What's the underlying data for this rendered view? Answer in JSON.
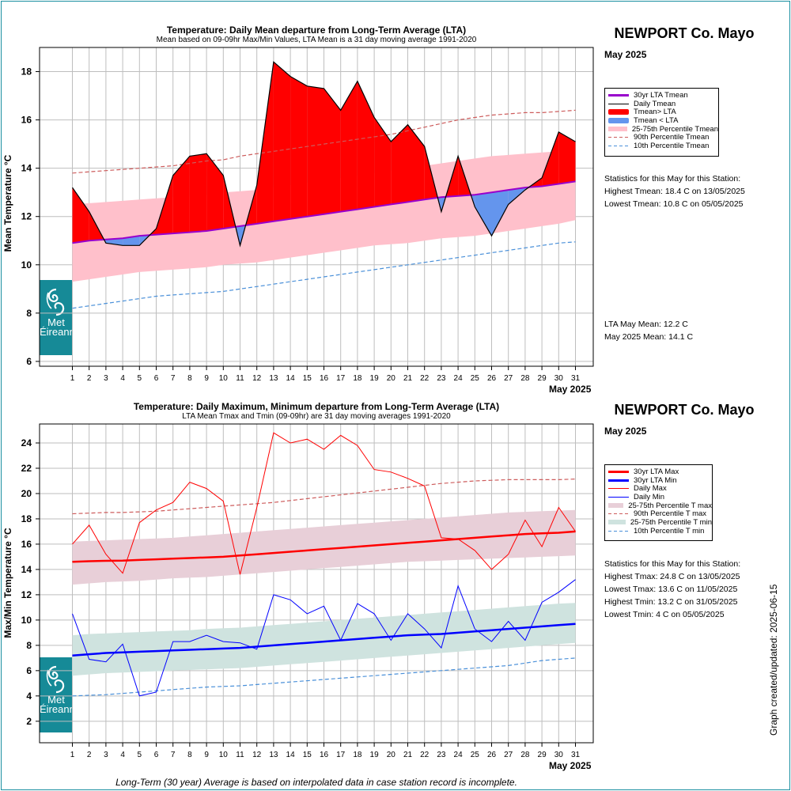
{
  "colors": {
    "frame": "#1b8fa0",
    "grid": "#bebebe",
    "lta": "#9900cc",
    "above": "#ff0000",
    "below": "#6495ed",
    "pband": "#ffc0cb",
    "p90": "#cd5c5c",
    "p10": "#4a90d9",
    "ltamax": "#ff0000",
    "ltamin": "#0000ff",
    "maxband": "#e8cfd8",
    "minband": "#cfe3df",
    "logo": "#168a97"
  },
  "station": "NEWPORT Co. Mayo",
  "period": "May 2025",
  "x_axis_label": "May 2025",
  "updated": "Graph created/updated:  2025-06-15",
  "footnote": "Long-Term (30 year) Average is based on interpolated data in case station record is incomplete.",
  "logo": {
    "line1": "Met",
    "line2": "Éireann",
    "icon": "met-eireann-swirl-icon"
  },
  "top": {
    "title": "Temperature: Daily Mean departure from Long-Term Average (LTA)",
    "subtitle": "Mean based on 09-09hr Max/Min Values, LTA Mean is a 31 day moving average 1991-2020",
    "ylabel": "Mean Temperature °C",
    "legend": [
      {
        "label": "30yr LTA Tmean",
        "kind": "line",
        "color": "#9900cc",
        "width": 3
      },
      {
        "label": "Daily Tmean",
        "kind": "line",
        "color": "#000000",
        "width": 1
      },
      {
        "label": "Tmean> LTA",
        "kind": "box",
        "color": "#ff0000"
      },
      {
        "label": "Tmean < LTA",
        "kind": "box",
        "color": "#6495ed"
      },
      {
        "label": "25-75th Percentile Tmean",
        "kind": "fill",
        "color": "#ffc0cb"
      },
      {
        "label": "90th Percentile Tmean",
        "kind": "dash",
        "color": "#cd5c5c"
      },
      {
        "label": "10th Percentile Tmean",
        "kind": "dash",
        "color": "#4a90d9"
      }
    ],
    "stats_heading": "Statistics for this May for this Station:",
    "stats": [
      "Highest Tmean: 18.4 C on 13/05/2025",
      "Lowest Tmean: 10.8 C on 05/05/2025"
    ],
    "lta_mean": "LTA May Mean: 12.2 C",
    "month_mean": "May 2025 Mean: 14.1 C"
  },
  "bottom": {
    "title": "Temperature: Daily Maximum, Minimum departure from Long-Term Average (LTA)",
    "subtitle": "LTA Mean Tmax and Tmin (09-09hr) are 31 day moving averages 1991-2020",
    "ylabel": "Max/Min Temperature °C",
    "legend": [
      {
        "label": "30yr LTA Max",
        "kind": "line",
        "color": "#ff0000",
        "width": 3
      },
      {
        "label": "30yr LTA Min",
        "kind": "line",
        "color": "#0000ff",
        "width": 3
      },
      {
        "label": "Daily Max",
        "kind": "line",
        "color": "#ff0000",
        "width": 1
      },
      {
        "label": "Daily Min",
        "kind": "line",
        "color": "#0000ff",
        "width": 1
      },
      {
        "label": "25-75th Percentile T max",
        "kind": "fill",
        "color": "#e8cfd8"
      },
      {
        "label": "90th Percentile T max",
        "kind": "dash",
        "color": "#cd5c5c"
      },
      {
        "label": "25-75th Percentile T min",
        "kind": "fill",
        "color": "#cfe3df"
      },
      {
        "label": "10th Percentile T min",
        "kind": "dash",
        "color": "#4a90d9"
      }
    ],
    "stats_heading": "Statistics for this May for this Station:",
    "stats": [
      "Highest Tmax: 24.8 C on 13/05/2025",
      "Lowest Tmax: 13.6 C on 11/05/2025",
      "Highest Tmin: 13.2 C on 31/05/2025",
      "Lowest Tmin: 4 C on 05/05/2025"
    ]
  },
  "chart_data": [
    {
      "type": "line",
      "title": "Temperature: Daily Mean departure from Long-Term Average (LTA)",
      "xlabel": "May 2025",
      "ylabel": "Mean Temperature °C",
      "x": [
        1,
        2,
        3,
        4,
        5,
        6,
        7,
        8,
        9,
        10,
        11,
        12,
        13,
        14,
        15,
        16,
        17,
        18,
        19,
        20,
        21,
        22,
        23,
        24,
        25,
        26,
        27,
        28,
        29,
        30,
        31
      ],
      "ylim": [
        5.8,
        19.0
      ],
      "yticks": [
        6,
        8,
        10,
        12,
        14,
        16,
        18
      ],
      "grid": true,
      "legend_position": "right",
      "series": [
        {
          "name": "Daily Tmean",
          "values": [
            13.2,
            12.2,
            10.9,
            10.8,
            10.8,
            11.5,
            13.7,
            14.5,
            14.6,
            13.7,
            10.8,
            13.3,
            18.4,
            17.8,
            17.4,
            17.3,
            16.4,
            17.6,
            16.1,
            15.1,
            15.8,
            14.9,
            12.2,
            14.5,
            12.4,
            11.2,
            12.5,
            13.1,
            13.6,
            15.5,
            15.1
          ]
        },
        {
          "name": "30yr LTA Tmean",
          "values": [
            10.9,
            11.0,
            11.05,
            11.1,
            11.2,
            11.25,
            11.3,
            11.35,
            11.4,
            11.5,
            11.6,
            11.7,
            11.8,
            11.9,
            12.0,
            12.1,
            12.2,
            12.3,
            12.4,
            12.5,
            12.6,
            12.7,
            12.8,
            12.85,
            12.9,
            13.0,
            13.1,
            13.2,
            13.25,
            13.35,
            13.45
          ]
        },
        {
          "name": "25th Percentile Tmean",
          "values": [
            9.3,
            9.4,
            9.5,
            9.6,
            9.7,
            9.75,
            9.8,
            9.85,
            9.9,
            10.0,
            10.05,
            10.1,
            10.2,
            10.3,
            10.4,
            10.5,
            10.6,
            10.7,
            10.8,
            10.85,
            10.9,
            11.0,
            11.1,
            11.15,
            11.2,
            11.3,
            11.4,
            11.5,
            11.6,
            11.7,
            11.85
          ]
        },
        {
          "name": "75th Percentile Tmean",
          "values": [
            12.5,
            12.55,
            12.6,
            12.65,
            12.7,
            12.75,
            12.8,
            12.85,
            12.9,
            13.0,
            13.05,
            13.1,
            13.2,
            13.3,
            13.4,
            13.5,
            13.6,
            13.7,
            13.8,
            13.9,
            14.0,
            14.1,
            14.2,
            14.3,
            14.4,
            14.5,
            14.55,
            14.6,
            14.65,
            14.7,
            14.8
          ]
        },
        {
          "name": "90th Percentile Tmean",
          "values": [
            13.8,
            13.85,
            13.9,
            13.95,
            14.0,
            14.05,
            14.1,
            14.2,
            14.3,
            14.35,
            14.5,
            14.6,
            14.7,
            14.8,
            14.9,
            15.0,
            15.1,
            15.2,
            15.3,
            15.4,
            15.55,
            15.7,
            15.85,
            16.0,
            16.1,
            16.2,
            16.25,
            16.3,
            16.3,
            16.35,
            16.4
          ]
        },
        {
          "name": "10th Percentile Tmean",
          "values": [
            8.2,
            8.3,
            8.4,
            8.5,
            8.6,
            8.7,
            8.75,
            8.8,
            8.85,
            8.9,
            9.0,
            9.1,
            9.2,
            9.3,
            9.4,
            9.5,
            9.6,
            9.7,
            9.8,
            9.9,
            10.0,
            10.1,
            10.2,
            10.3,
            10.4,
            10.5,
            10.6,
            10.7,
            10.8,
            10.9,
            10.95
          ]
        }
      ]
    },
    {
      "type": "line",
      "title": "Temperature: Daily Maximum, Minimum departure from Long-Term Average (LTA)",
      "xlabel": "May 2025",
      "ylabel": "Max/Min Temperature °C",
      "x": [
        1,
        2,
        3,
        4,
        5,
        6,
        7,
        8,
        9,
        10,
        11,
        12,
        13,
        14,
        15,
        16,
        17,
        18,
        19,
        20,
        21,
        22,
        23,
        24,
        25,
        26,
        27,
        28,
        29,
        30,
        31
      ],
      "ylim": [
        0.3,
        25.5
      ],
      "yticks": [
        2,
        4,
        6,
        8,
        10,
        12,
        14,
        16,
        18,
        20,
        22,
        24
      ],
      "grid": true,
      "legend_position": "right",
      "series": [
        {
          "name": "Daily Max",
          "values": [
            16.0,
            17.5,
            15.2,
            13.7,
            17.7,
            18.7,
            19.3,
            20.9,
            20.4,
            19.4,
            13.6,
            18.9,
            24.8,
            24.0,
            24.3,
            23.5,
            24.6,
            23.8,
            21.9,
            21.7,
            21.2,
            20.6,
            16.5,
            16.4,
            15.5,
            14.0,
            15.2,
            17.9,
            15.8,
            18.9,
            17.0
          ]
        },
        {
          "name": "Daily Min",
          "values": [
            10.5,
            6.9,
            6.7,
            8.1,
            4.0,
            4.3,
            8.3,
            8.3,
            8.8,
            8.3,
            8.2,
            7.7,
            12.0,
            11.6,
            10.5,
            11.1,
            8.4,
            11.3,
            10.5,
            8.4,
            10.5,
            9.3,
            7.8,
            12.7,
            9.3,
            8.3,
            9.9,
            8.4,
            11.4,
            12.2,
            13.2
          ]
        },
        {
          "name": "30yr LTA Max",
          "values": [
            14.6,
            14.65,
            14.68,
            14.7,
            14.75,
            14.8,
            14.85,
            14.9,
            14.95,
            15.0,
            15.1,
            15.2,
            15.3,
            15.4,
            15.5,
            15.6,
            15.7,
            15.8,
            15.9,
            16.0,
            16.1,
            16.2,
            16.3,
            16.4,
            16.5,
            16.6,
            16.7,
            16.8,
            16.85,
            16.9,
            17.0
          ]
        },
        {
          "name": "30yr LTA Min",
          "values": [
            7.2,
            7.3,
            7.4,
            7.45,
            7.5,
            7.55,
            7.6,
            7.65,
            7.7,
            7.75,
            7.8,
            7.9,
            8.0,
            8.1,
            8.2,
            8.3,
            8.4,
            8.5,
            8.6,
            8.7,
            8.8,
            8.85,
            8.9,
            9.0,
            9.1,
            9.2,
            9.3,
            9.4,
            9.5,
            9.6,
            9.7
          ]
        },
        {
          "name": "25th Percentile T max",
          "values": [
            12.8,
            12.9,
            13.0,
            13.05,
            13.1,
            13.2,
            13.3,
            13.35,
            13.4,
            13.5,
            13.6,
            13.7,
            13.8,
            13.9,
            14.0,
            14.1,
            14.2,
            14.3,
            14.4,
            14.5,
            14.6,
            14.65,
            14.7,
            14.75,
            14.8,
            14.85,
            14.9,
            14.95,
            15.0,
            15.05,
            15.1
          ]
        },
        {
          "name": "75th Percentile T max",
          "values": [
            16.2,
            16.25,
            16.3,
            16.35,
            16.4,
            16.45,
            16.5,
            16.6,
            16.7,
            16.8,
            16.9,
            17.0,
            17.1,
            17.2,
            17.3,
            17.4,
            17.5,
            17.6,
            17.7,
            17.8,
            17.9,
            18.0,
            18.1,
            18.2,
            18.3,
            18.4,
            18.5,
            18.55,
            18.6,
            18.65,
            18.7
          ]
        },
        {
          "name": "90th Percentile T max",
          "values": [
            18.4,
            18.45,
            18.5,
            18.5,
            18.55,
            18.6,
            18.7,
            18.8,
            18.9,
            19.0,
            19.1,
            19.2,
            19.3,
            19.45,
            19.6,
            19.75,
            19.9,
            20.05,
            20.2,
            20.35,
            20.5,
            20.65,
            20.8,
            20.9,
            21.0,
            21.05,
            21.1,
            21.1,
            21.1,
            21.1,
            21.15
          ]
        },
        {
          "name": "25th Percentile T min",
          "values": [
            5.6,
            5.7,
            5.8,
            5.85,
            5.9,
            5.95,
            6.0,
            6.05,
            6.1,
            6.15,
            6.2,
            6.3,
            6.4,
            6.5,
            6.6,
            6.7,
            6.8,
            6.9,
            7.0,
            7.1,
            7.2,
            7.3,
            7.4,
            7.5,
            7.6,
            7.7,
            7.8,
            7.9,
            8.0,
            8.1,
            8.2
          ]
        },
        {
          "name": "75th Percentile T min",
          "values": [
            8.8,
            8.9,
            8.95,
            9.0,
            9.05,
            9.1,
            9.15,
            9.2,
            9.3,
            9.35,
            9.4,
            9.5,
            9.6,
            9.7,
            9.8,
            9.9,
            10.0,
            10.1,
            10.2,
            10.3,
            10.4,
            10.5,
            10.6,
            10.7,
            10.8,
            10.9,
            11.0,
            11.1,
            11.2,
            11.3,
            11.35
          ]
        },
        {
          "name": "10th Percentile T min",
          "values": [
            4.0,
            4.05,
            4.1,
            4.2,
            4.3,
            4.4,
            4.5,
            4.6,
            4.7,
            4.75,
            4.8,
            4.9,
            5.0,
            5.1,
            5.2,
            5.3,
            5.4,
            5.5,
            5.6,
            5.7,
            5.8,
            5.9,
            6.0,
            6.1,
            6.2,
            6.3,
            6.4,
            6.6,
            6.8,
            6.9,
            7.0
          ]
        }
      ]
    }
  ]
}
